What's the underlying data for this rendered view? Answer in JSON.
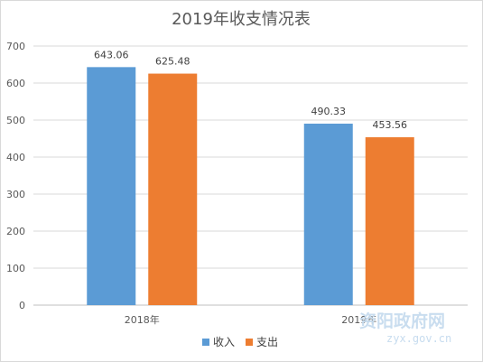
{
  "chart_data": {
    "type": "bar",
    "title": "2019年收支情况表",
    "categories": [
      "2018年",
      "2019年"
    ],
    "series": [
      {
        "name": "收入",
        "values": [
          643.06,
          490.33
        ],
        "color": "#5b9bd5"
      },
      {
        "name": "支出",
        "values": [
          625.48,
          453.56
        ],
        "color": "#ed7d31"
      }
    ],
    "ylim": [
      0,
      700
    ],
    "yticks": [
      0,
      100,
      200,
      300,
      400,
      500,
      600,
      700
    ],
    "grid": true,
    "legend_position": "bottom",
    "data_labels": true
  },
  "watermark": {
    "name": "资阳政府网",
    "url": "zyx.gov.cn"
  }
}
